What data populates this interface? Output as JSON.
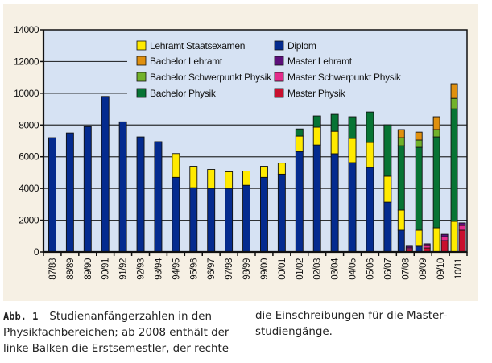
{
  "chart_data": {
    "type": "bar",
    "stacked": true,
    "title": "",
    "xlabel": "",
    "ylabel": "",
    "ylim": [
      0,
      14000
    ],
    "yticks": [
      0,
      2000,
      4000,
      6000,
      8000,
      10000,
      12000,
      14000
    ],
    "grid": true,
    "legend_position": "top-center",
    "categories": [
      "87/88",
      "88/89",
      "89/90",
      "90/91",
      "91/92",
      "92/93",
      "93/94",
      "94/95",
      "95/96",
      "96/97",
      "97/98",
      "98/99",
      "99/00",
      "00/01",
      "01/02",
      "02/03",
      "03/04",
      "04/05",
      "05/06",
      "06/07",
      "07/08",
      "08/09",
      "09/10",
      "10/11"
    ],
    "legend": [
      {
        "name": "Lehramt Staatsexamen",
        "color": "#ffea00"
      },
      {
        "name": "Bachelor Lehramt",
        "color": "#e0900f"
      },
      {
        "name": "Bachelor Schwerpunkt Physik",
        "color": "#72b22a"
      },
      {
        "name": "Bachelor Physik",
        "color": "#077434"
      },
      {
        "name": "Diplom",
        "color": "#042b8f"
      },
      {
        "name": "Master Lehramt",
        "color": "#5c0f7a"
      },
      {
        "name": "Master Schwerpunkt Physik",
        "color": "#e32b8b"
      },
      {
        "name": "Master Physik",
        "color": "#c8102e"
      }
    ],
    "left_bar_series": [
      {
        "name": "Diplom",
        "color": "#042b8f",
        "values": [
          7200,
          7500,
          7900,
          9800,
          8200,
          7250,
          6950,
          4700,
          4050,
          4000,
          4000,
          4200,
          4700,
          4900,
          6330,
          6740,
          6190,
          5630,
          5320,
          3140,
          1370,
          360,
          0,
          0
        ]
      },
      {
        "name": "Lehramt Staatsexamen",
        "color": "#ffea00",
        "values": [
          0,
          0,
          0,
          0,
          0,
          0,
          0,
          1500,
          1350,
          1200,
          1050,
          900,
          700,
          700,
          970,
          1120,
          1410,
          1520,
          1580,
          1630,
          1270,
          1010,
          1520,
          1930
        ]
      },
      {
        "name": "Bachelor Physik",
        "color": "#077434",
        "values": [
          0,
          0,
          0,
          0,
          0,
          0,
          0,
          0,
          0,
          0,
          0,
          0,
          0,
          0,
          450,
          710,
          1070,
          1370,
          1920,
          3240,
          4050,
          5220,
          5730,
          7090
        ]
      },
      {
        "name": "Bachelor Schwerpunkt Physik",
        "color": "#72b22a",
        "values": [
          0,
          0,
          0,
          0,
          0,
          0,
          0,
          0,
          0,
          0,
          0,
          0,
          0,
          0,
          0,
          0,
          0,
          0,
          0,
          0,
          510,
          460,
          460,
          660
        ]
      },
      {
        "name": "Bachelor Lehramt",
        "color": "#e0900f",
        "values": [
          0,
          0,
          0,
          0,
          0,
          0,
          0,
          0,
          0,
          0,
          0,
          0,
          0,
          0,
          0,
          0,
          0,
          0,
          0,
          0,
          510,
          500,
          810,
          920
        ]
      }
    ],
    "right_bar_series": [
      {
        "name": "Master Physik",
        "color": "#c8102e",
        "values": [
          0,
          0,
          0,
          0,
          0,
          0,
          0,
          0,
          0,
          0,
          0,
          0,
          0,
          0,
          0,
          0,
          0,
          0,
          0,
          0,
          150,
          250,
          710,
          1370
        ]
      },
      {
        "name": "Master Schwerpunkt Physik",
        "color": "#e32b8b",
        "values": [
          0,
          0,
          0,
          0,
          0,
          0,
          0,
          0,
          0,
          0,
          0,
          0,
          0,
          0,
          0,
          0,
          0,
          0,
          0,
          0,
          100,
          150,
          250,
          300
        ]
      },
      {
        "name": "Master Lehramt",
        "color": "#5c0f7a",
        "values": [
          0,
          0,
          0,
          0,
          0,
          0,
          0,
          0,
          0,
          0,
          0,
          0,
          0,
          0,
          0,
          0,
          0,
          0,
          0,
          0,
          110,
          110,
          150,
          160
        ]
      }
    ]
  },
  "colors": {
    "panel_bg": "#f6f0e4",
    "plot_bg": "#d6e2f3",
    "axis": "#111111",
    "gridline": "#111111"
  },
  "caption": {
    "label": "Abb. 1",
    "col1_text": "Studienanfängerzahlen in den Physikfachbereichen; ab 2008 enthält der linke Balken die Erstsemestler, der rechte",
    "col2_text": "die Einschreibungen für die Master­studiengänge."
  }
}
